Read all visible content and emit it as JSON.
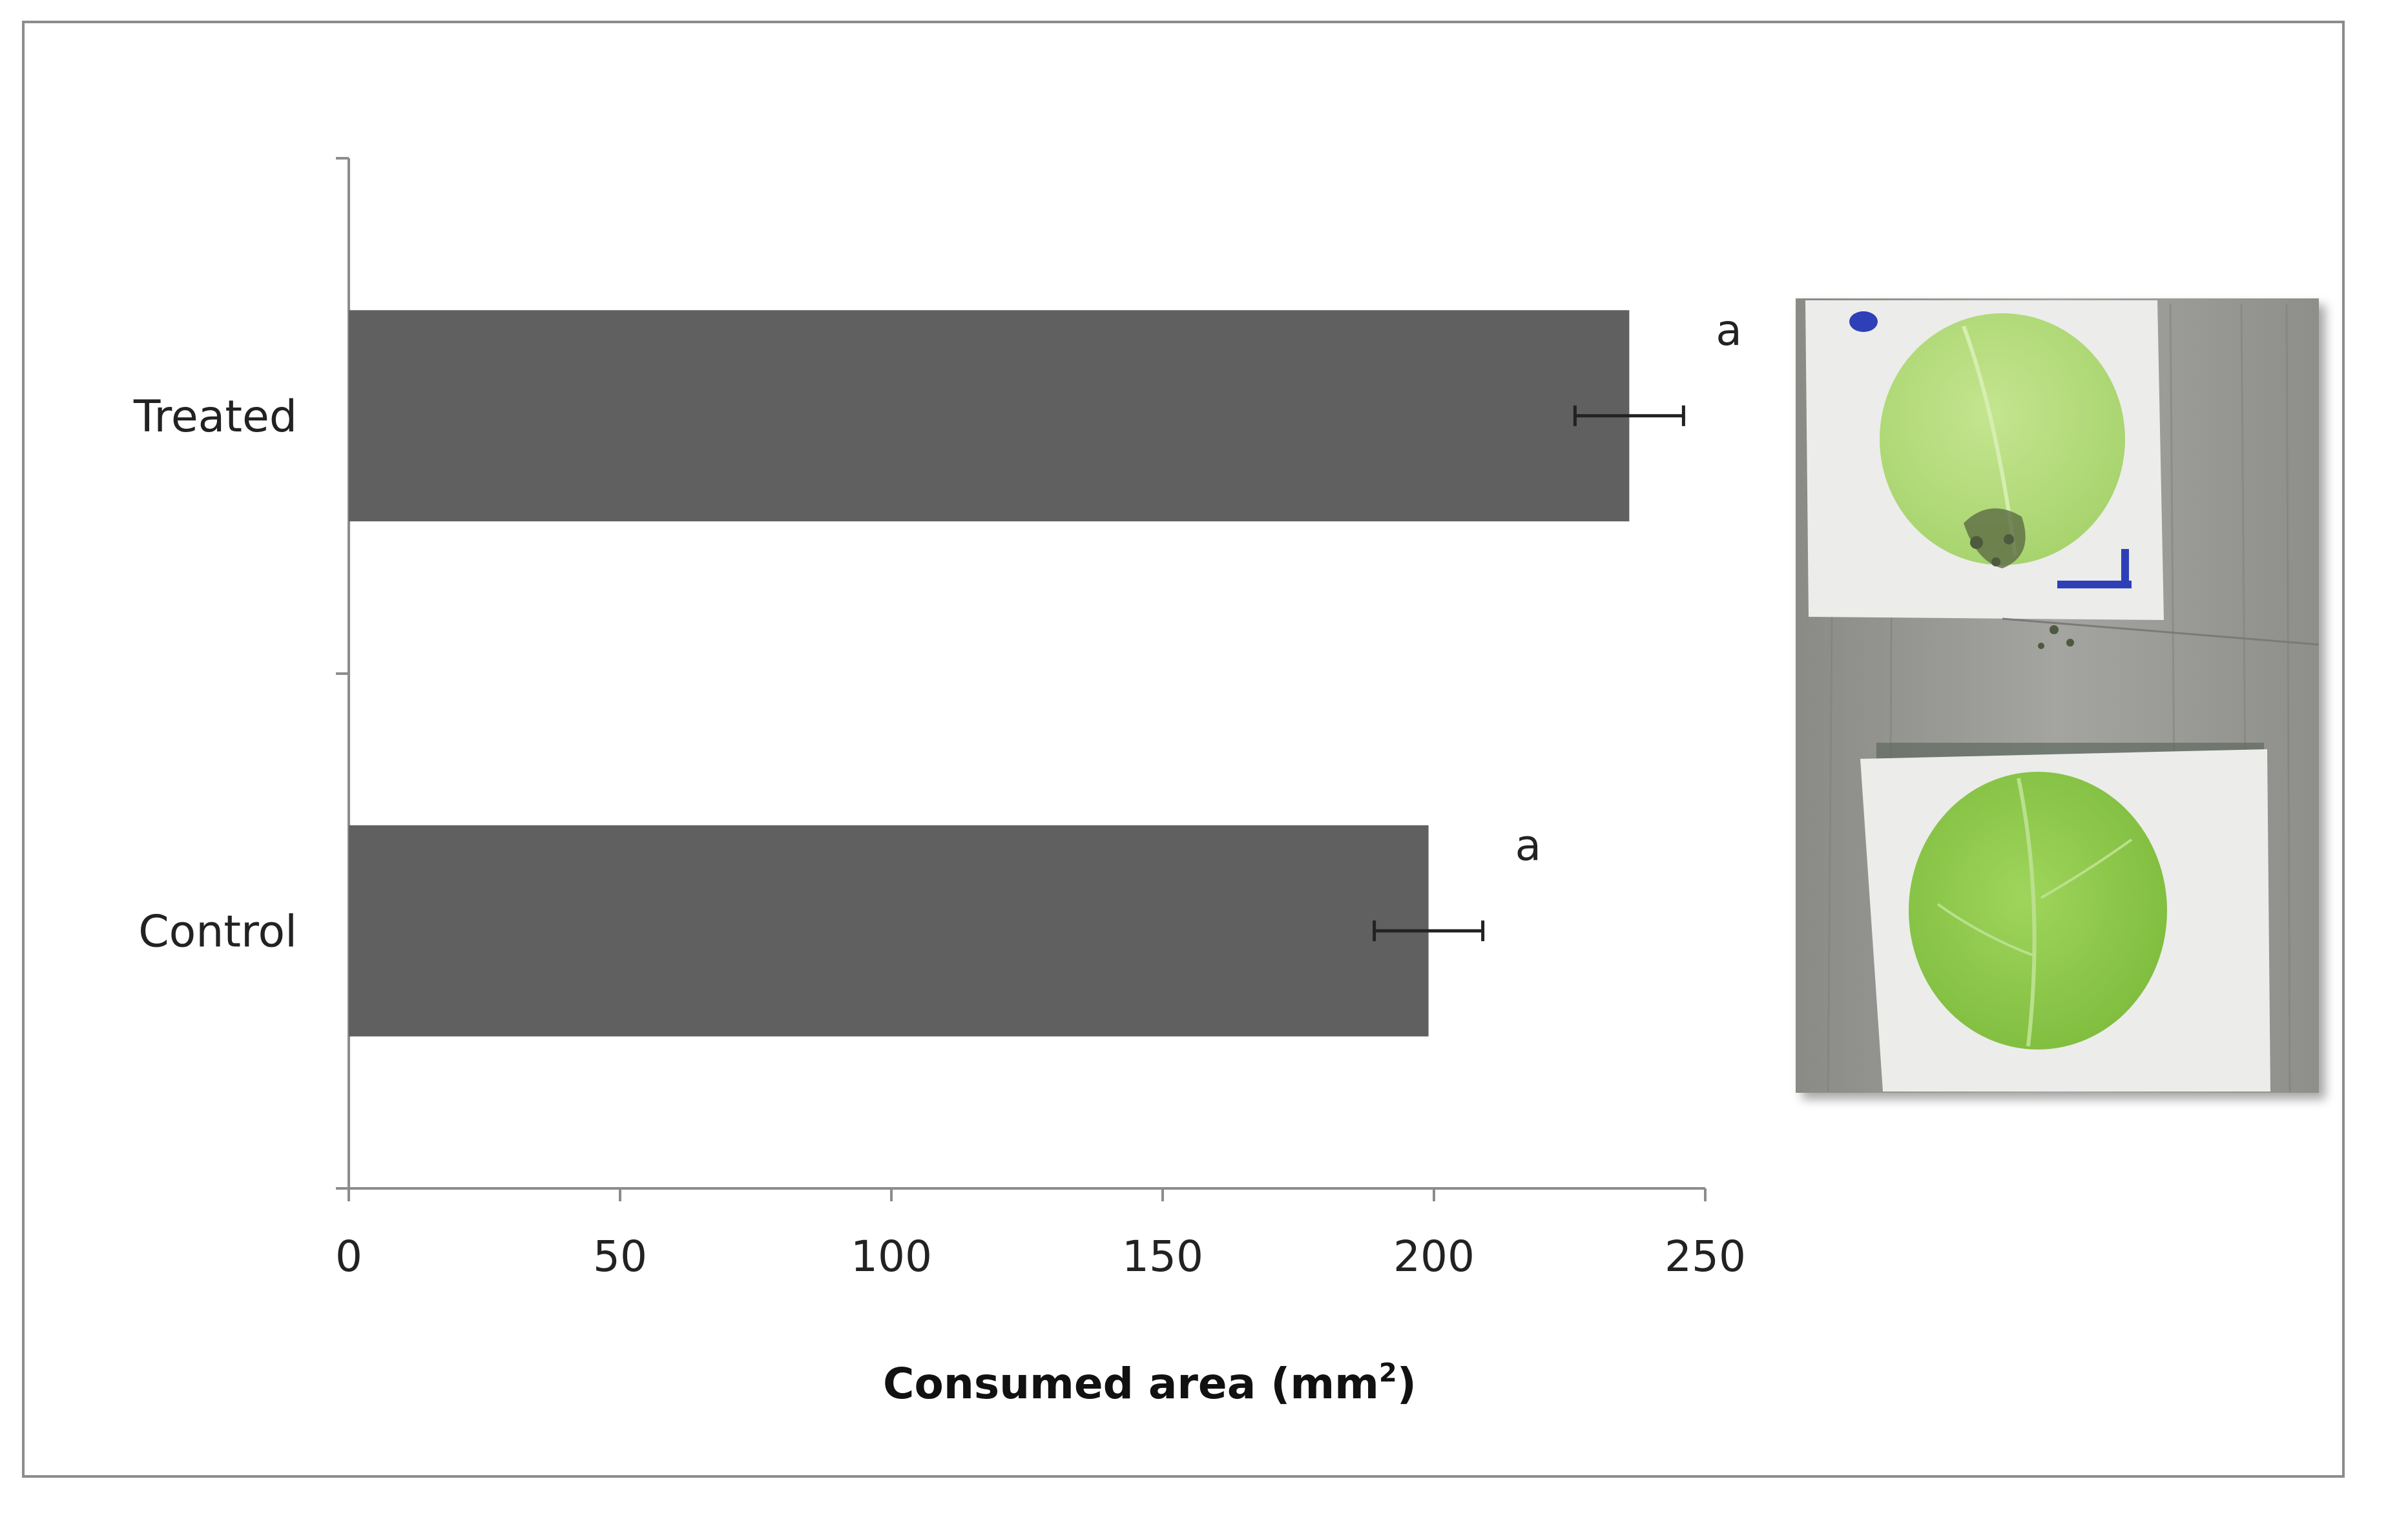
{
  "chart_data": {
    "type": "bar",
    "orientation": "horizontal",
    "categories": [
      "Treated",
      "Control"
    ],
    "values": [
      236,
      199
    ],
    "errors": [
      10,
      10
    ],
    "significance_letters": [
      "a",
      "a"
    ],
    "xlabel_main": "Consumed area (mm",
    "xlabel_sup": "2",
    "xlabel_end": ")",
    "xlim": [
      0,
      250
    ],
    "xticks": [
      "0",
      "50",
      "100",
      "150",
      "200",
      "250"
    ],
    "grid": false,
    "bar_color": "#606060"
  },
  "photo": {
    "icon": "leaf-disc-photo"
  }
}
